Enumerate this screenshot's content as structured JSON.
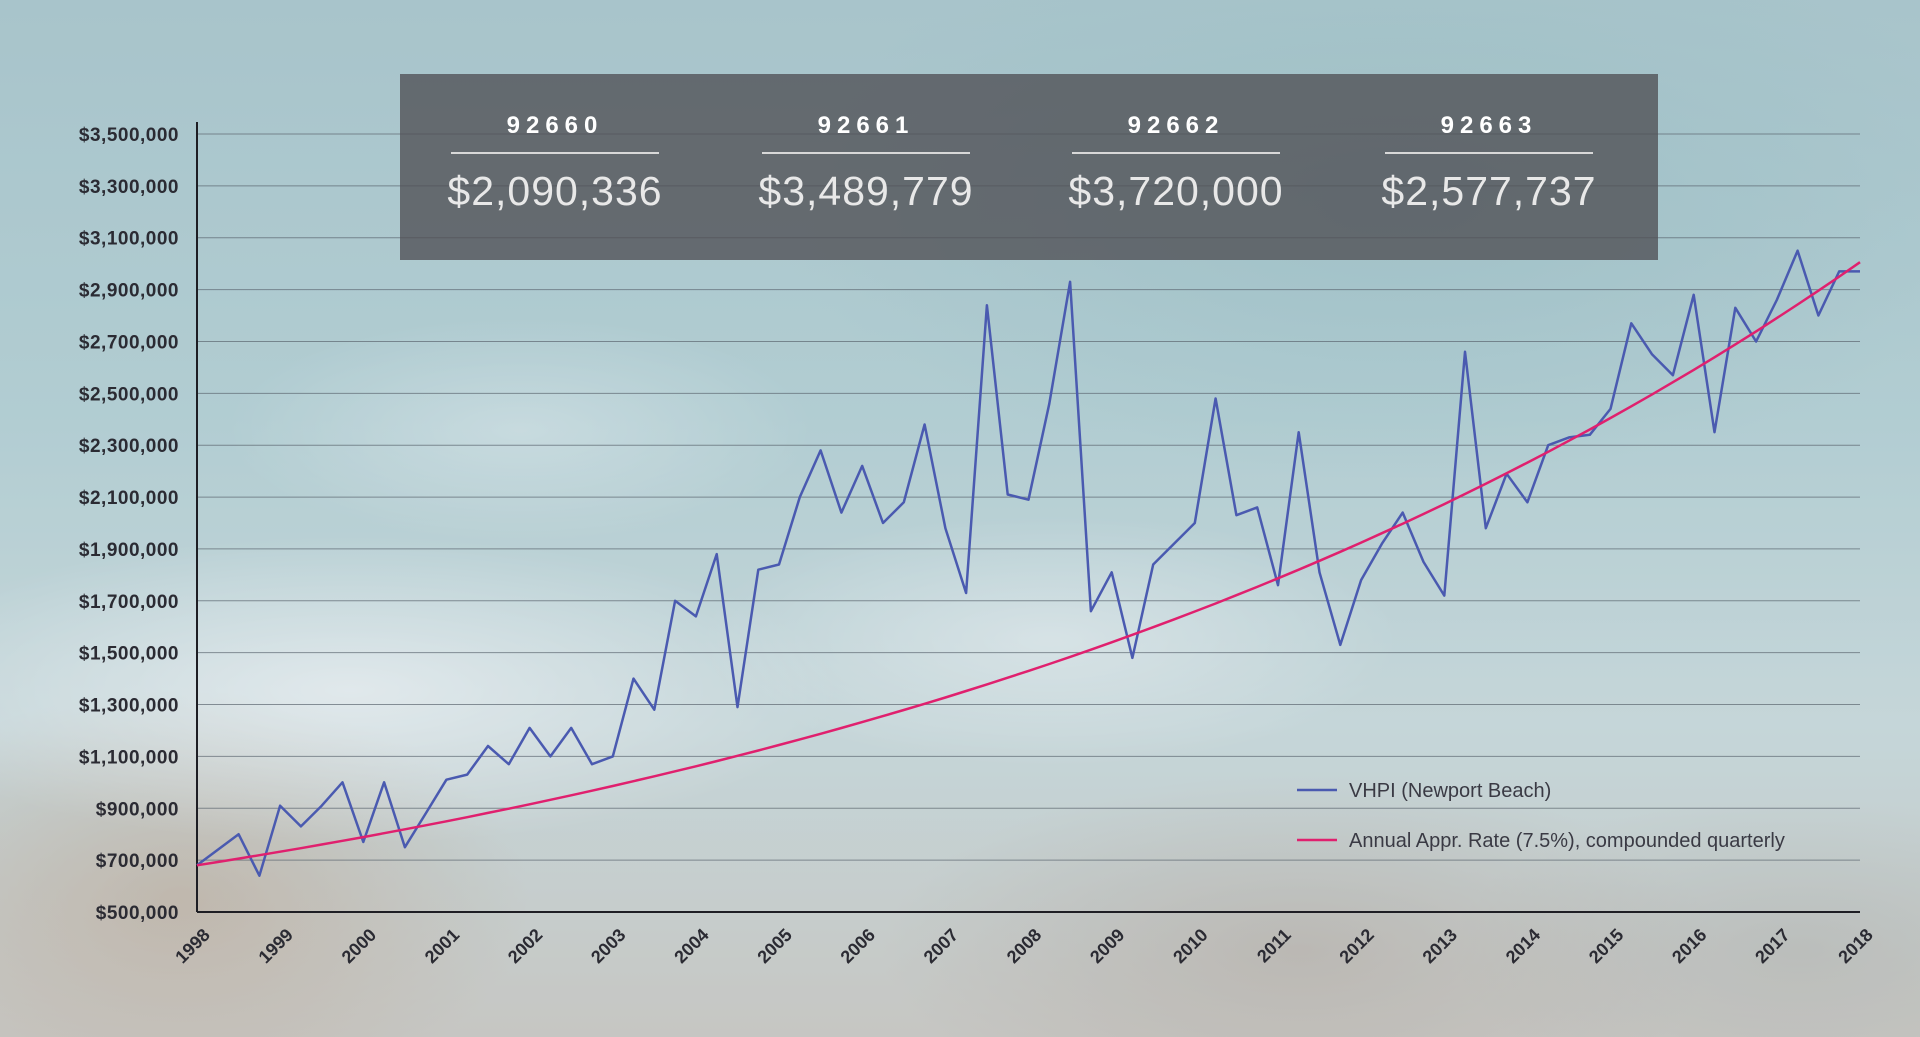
{
  "zips": [
    {
      "code": "92660",
      "value": "$2,090,336"
    },
    {
      "code": "92661",
      "value": "$3,489,779"
    },
    {
      "code": "92662",
      "value": "$3,720,000"
    },
    {
      "code": "92663",
      "value": "$2,577,737"
    }
  ],
  "chart_data": {
    "type": "line",
    "title": "",
    "xlabel": "",
    "ylabel": "",
    "ylim": [
      500000,
      3500000
    ],
    "xlim": [
      1998,
      2018
    ],
    "y_ticks": [
      500000,
      700000,
      900000,
      1100000,
      1300000,
      1500000,
      1700000,
      1900000,
      2100000,
      2300000,
      2500000,
      2700000,
      2900000,
      3100000,
      3300000,
      3500000
    ],
    "y_tick_labels": [
      "$500,000",
      "$700,000",
      "$900,000",
      "$1,100,000",
      "$1,300,000",
      "$1,500,000",
      "$1,700,000",
      "$1,900,000",
      "$2,100,000",
      "$2,300,000",
      "$2,500,000",
      "$2,700,000",
      "$2,900,000",
      "$3,100,000",
      "$3,300,000",
      "$3,500,000"
    ],
    "x_ticks": [
      1998,
      1999,
      2000,
      2001,
      2002,
      2003,
      2004,
      2005,
      2006,
      2007,
      2008,
      2009,
      2010,
      2011,
      2012,
      2013,
      2014,
      2015,
      2016,
      2017,
      2018
    ],
    "x_tick_labels": [
      "1998",
      "1999",
      "2000",
      "2001",
      "2002",
      "2003",
      "2004",
      "2005",
      "2006",
      "2007",
      "2008",
      "2009",
      "2010",
      "2011",
      "2012",
      "2013",
      "2014",
      "2015",
      "2016",
      "2017",
      "2018"
    ],
    "grid": "horizontal",
    "legend_position": "bottom-right",
    "series": [
      {
        "name": "VHPI (Newport Beach)",
        "color": "#4a5ab0",
        "x": [
          1998,
          1998.25,
          1998.5,
          1998.75,
          1999,
          1999.25,
          1999.5,
          1999.75,
          2000,
          2000.25,
          2000.5,
          2000.75,
          2001,
          2001.25,
          2001.5,
          2001.75,
          2002,
          2002.25,
          2002.5,
          2002.75,
          2003,
          2003.25,
          2003.5,
          2003.75,
          2004,
          2004.25,
          2004.5,
          2004.75,
          2005,
          2005.25,
          2005.5,
          2005.75,
          2006,
          2006.25,
          2006.5,
          2006.75,
          2007,
          2007.25,
          2007.5,
          2007.75,
          2008,
          2008.25,
          2008.5,
          2008.75,
          2009,
          2009.25,
          2009.5,
          2009.75,
          2010,
          2010.25,
          2010.5,
          2010.75,
          2011,
          2011.25,
          2011.5,
          2011.75,
          2012,
          2012.25,
          2012.5,
          2012.75,
          2013,
          2013.25,
          2013.5,
          2013.75,
          2014,
          2014.25,
          2014.5,
          2014.75,
          2015,
          2015.25,
          2015.5,
          2015.75,
          2016,
          2016.25,
          2016.5,
          2016.75,
          2017,
          2017.25,
          2017.5,
          2017.75,
          2018
        ],
        "values": [
          680000,
          740000,
          800000,
          640000,
          910000,
          830000,
          910000,
          1000000,
          770000,
          1000000,
          750000,
          880000,
          1010000,
          1030000,
          1140000,
          1070000,
          1210000,
          1100000,
          1210000,
          1070000,
          1100000,
          1400000,
          1280000,
          1700000,
          1640000,
          1880000,
          1290000,
          1820000,
          1840000,
          2100000,
          2280000,
          2040000,
          2220000,
          2000000,
          2080000,
          2380000,
          1980000,
          1730000,
          2840000,
          2110000,
          2090000,
          2460000,
          2930000,
          1660000,
          1810000,
          1480000,
          1840000,
          1920000,
          2000000,
          2480000,
          2030000,
          2060000,
          1760000,
          2350000,
          1810000,
          1530000,
          1780000,
          1920000,
          2040000,
          1850000,
          1720000,
          2660000,
          1980000,
          2190000,
          2080000,
          2300000,
          2330000,
          2340000,
          2440000,
          2770000,
          2650000,
          2570000,
          2880000,
          2350000,
          2830000,
          2700000,
          2860000,
          3050000,
          2800000,
          2970000,
          2970000
        ]
      },
      {
        "name": "Annual Appr. Rate (7.5%), compounded quarterly",
        "color": "#e0206e",
        "x": [
          1998,
          2018
        ],
        "start_value": 680000,
        "rate": 0.075,
        "compounding": "quarterly"
      }
    ]
  }
}
